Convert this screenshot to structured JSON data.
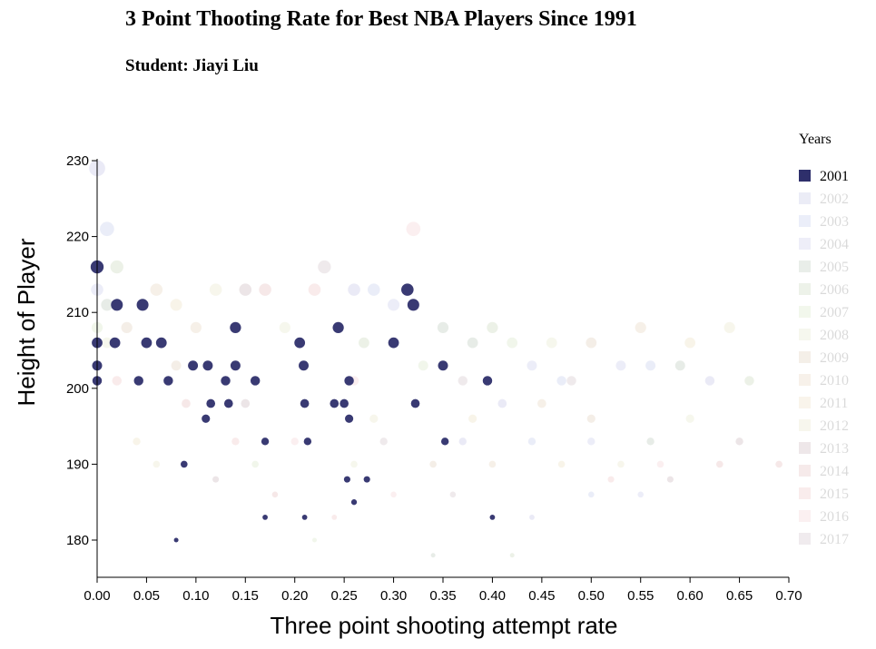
{
  "header": {
    "title": "3 Point Thooting Rate for Best NBA Players Since 1991",
    "subtitle": "Student: Jiayi Liu"
  },
  "chart_data": {
    "type": "scatter",
    "title": "3 Point Thooting Rate for Best NBA Players Since 1991",
    "xlabel": "Three point shooting attempt rate",
    "ylabel": "Height of Player",
    "xlim": [
      0,
      0.7
    ],
    "ylim": [
      175,
      230
    ],
    "x_ticks": [
      "0.00",
      "0.05",
      "0.10",
      "0.15",
      "0.20",
      "0.25",
      "0.30",
      "0.35",
      "0.40",
      "0.45",
      "0.50",
      "0.55",
      "0.60",
      "0.65",
      "0.70"
    ],
    "y_ticks": [
      "180",
      "190",
      "200",
      "210",
      "220",
      "230"
    ],
    "legend": {
      "title": "Years",
      "position": "right",
      "highlighted": "2001",
      "entries": [
        {
          "year": "2001",
          "color": "#2e2f6b"
        },
        {
          "year": "2002",
          "color": "#7b7fc4"
        },
        {
          "year": "2003",
          "color": "#7b8fd4"
        },
        {
          "year": "2004",
          "color": "#8a90d2"
        },
        {
          "year": "2005",
          "color": "#6c8a6a"
        },
        {
          "year": "2006",
          "color": "#86a86c"
        },
        {
          "year": "2007",
          "color": "#a8c882"
        },
        {
          "year": "2008",
          "color": "#c4cc90"
        },
        {
          "year": "2009",
          "color": "#b89468"
        },
        {
          "year": "2010",
          "color": "#c7a070"
        },
        {
          "year": "2011",
          "color": "#d4b878"
        },
        {
          "year": "2012",
          "color": "#ccc488"
        },
        {
          "year": "2013",
          "color": "#8a5c6c"
        },
        {
          "year": "2014",
          "color": "#c47070"
        },
        {
          "year": "2015",
          "color": "#d88080"
        },
        {
          "year": "2016",
          "color": "#e49aa4"
        },
        {
          "year": "2017",
          "color": "#9a7a8a"
        }
      ]
    },
    "series": [
      {
        "name": "2001",
        "points": [
          [
            0.0,
            216
          ],
          [
            0.0,
            206
          ],
          [
            0.0,
            203
          ],
          [
            0.0,
            201
          ],
          [
            0.02,
            211
          ],
          [
            0.018,
            206
          ],
          [
            0.046,
            211
          ],
          [
            0.05,
            206
          ],
          [
            0.065,
            206
          ],
          [
            0.042,
            201
          ],
          [
            0.072,
            201
          ],
          [
            0.097,
            203
          ],
          [
            0.112,
            203
          ],
          [
            0.115,
            198
          ],
          [
            0.13,
            201
          ],
          [
            0.133,
            198
          ],
          [
            0.14,
            208
          ],
          [
            0.14,
            203
          ],
          [
            0.11,
            196
          ],
          [
            0.16,
            201
          ],
          [
            0.205,
            206
          ],
          [
            0.209,
            203
          ],
          [
            0.21,
            198
          ],
          [
            0.213,
            193
          ],
          [
            0.244,
            208
          ],
          [
            0.24,
            198
          ],
          [
            0.25,
            198
          ],
          [
            0.255,
            201
          ],
          [
            0.255,
            196
          ],
          [
            0.3,
            206
          ],
          [
            0.314,
            213
          ],
          [
            0.32,
            211
          ],
          [
            0.322,
            198
          ],
          [
            0.35,
            203
          ],
          [
            0.352,
            193
          ],
          [
            0.395,
            201
          ],
          [
            0.17,
            193
          ],
          [
            0.088,
            190
          ],
          [
            0.273,
            188
          ],
          [
            0.253,
            188
          ],
          [
            0.26,
            185
          ],
          [
            0.17,
            183
          ],
          [
            0.21,
            183
          ],
          [
            0.4,
            183
          ],
          [
            0.08,
            180
          ]
        ]
      },
      {
        "name": "2002-2017",
        "background": true,
        "points": [
          [
            0.0,
            229
          ],
          [
            0.01,
            221
          ],
          [
            0.0,
            213
          ],
          [
            0.01,
            211
          ],
          [
            0.02,
            216
          ],
          [
            0.0,
            208
          ],
          [
            0.01,
            206
          ],
          [
            0.03,
            208
          ],
          [
            0.06,
            213
          ],
          [
            0.08,
            211
          ],
          [
            0.12,
            213
          ],
          [
            0.15,
            213
          ],
          [
            0.17,
            213
          ],
          [
            0.22,
            213
          ],
          [
            0.32,
            221
          ],
          [
            0.23,
            216
          ],
          [
            0.26,
            213
          ],
          [
            0.28,
            213
          ],
          [
            0.3,
            211
          ],
          [
            0.35,
            208
          ],
          [
            0.4,
            208
          ],
          [
            0.42,
            206
          ],
          [
            0.46,
            206
          ],
          [
            0.5,
            206
          ],
          [
            0.55,
            208
          ],
          [
            0.6,
            206
          ],
          [
            0.64,
            208
          ],
          [
            0.65,
            193
          ],
          [
            0.69,
            190
          ],
          [
            0.52,
            188
          ],
          [
            0.57,
            190
          ],
          [
            0.48,
            201
          ],
          [
            0.62,
            201
          ],
          [
            0.56,
            203
          ],
          [
            0.44,
            203
          ],
          [
            0.38,
            206
          ],
          [
            0.27,
            206
          ],
          [
            0.33,
            203
          ],
          [
            0.19,
            208
          ],
          [
            0.08,
            203
          ],
          [
            0.1,
            208
          ],
          [
            0.04,
            193
          ],
          [
            0.06,
            190
          ],
          [
            0.12,
            188
          ],
          [
            0.18,
            186
          ],
          [
            0.24,
            183
          ],
          [
            0.3,
            186
          ],
          [
            0.36,
            186
          ],
          [
            0.44,
            183
          ],
          [
            0.5,
            186
          ],
          [
            0.55,
            186
          ],
          [
            0.34,
            178
          ],
          [
            0.42,
            178
          ],
          [
            0.22,
            180
          ],
          [
            0.6,
            196
          ],
          [
            0.5,
            196
          ],
          [
            0.45,
            198
          ],
          [
            0.38,
            196
          ],
          [
            0.28,
            196
          ],
          [
            0.15,
            198
          ],
          [
            0.09,
            198
          ],
          [
            0.02,
            201
          ],
          [
            0.26,
            201
          ],
          [
            0.37,
            201
          ],
          [
            0.41,
            198
          ],
          [
            0.47,
            201
          ],
          [
            0.53,
            203
          ],
          [
            0.59,
            203
          ],
          [
            0.66,
            201
          ],
          [
            0.16,
            190
          ],
          [
            0.26,
            190
          ],
          [
            0.34,
            190
          ],
          [
            0.4,
            190
          ],
          [
            0.47,
            190
          ],
          [
            0.53,
            190
          ],
          [
            0.58,
            188
          ],
          [
            0.63,
            190
          ],
          [
            0.14,
            193
          ],
          [
            0.2,
            193
          ],
          [
            0.29,
            193
          ],
          [
            0.37,
            193
          ],
          [
            0.44,
            193
          ],
          [
            0.5,
            193
          ],
          [
            0.56,
            193
          ]
        ]
      }
    ]
  }
}
